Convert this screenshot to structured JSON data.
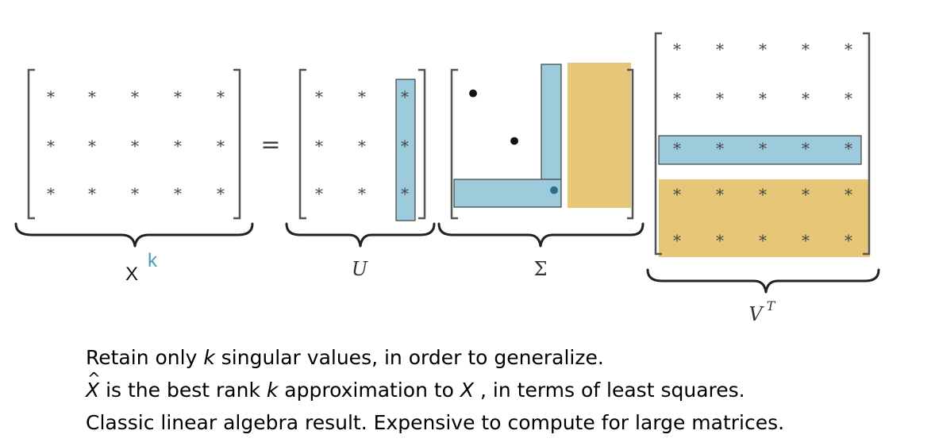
{
  "diagram": {
    "cell_symbol": "*",
    "diag_symbol": "•",
    "equals": "=",
    "labels": {
      "x": "X",
      "k": "k",
      "u": "U",
      "sigma": "Σ",
      "v": "V",
      "t": "T"
    },
    "colors": {
      "highlight_blue": "#9ecbdc",
      "highlight_gold": "#e6c777",
      "k_color": "#4a9bb5"
    }
  },
  "caption": {
    "line1": {
      "pre": "Retain only ",
      "k": "k",
      "post": " singular values, in order to generalize."
    },
    "line2": {
      "xhat": "X",
      "mid": " is the best rank ",
      "k": "k",
      "mid2": " approximation to ",
      "x": "X",
      "post": " , in terms of least squares."
    },
    "line3": "Classic linear algebra result. Expensive to compute for large matrices."
  }
}
